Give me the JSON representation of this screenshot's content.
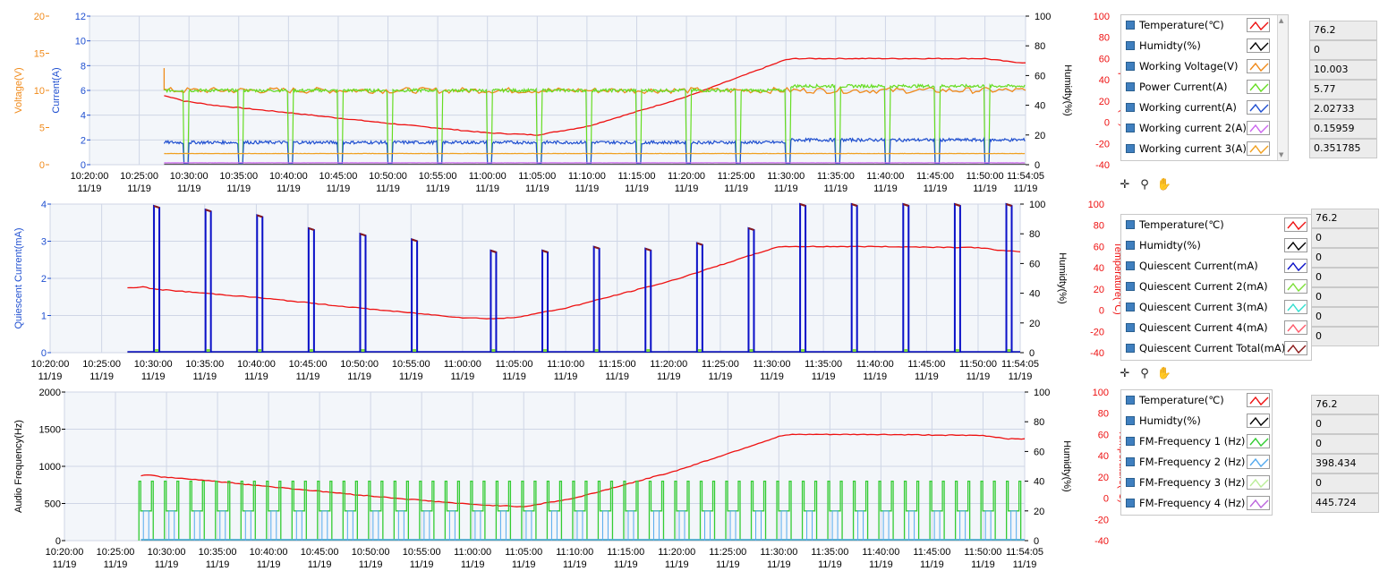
{
  "colors": {
    "temperature": "#ee1111",
    "humidity": "#000000",
    "voltage": "#f08a1a",
    "power_current": "#66dd22",
    "working_current": "#1f4fd0",
    "working_current_2": "#cc66ee",
    "working_current_3": "#f0a020",
    "quiescent_current": "#0a10c8",
    "quiescent_current_2": "#7ee03a",
    "quiescent_current_3": "#33e0d0",
    "quiescent_current_4": "#ff5a6a",
    "quiescent_total": "#8b1a1a",
    "fm1": "#33cc33",
    "fm2": "#55aaee",
    "fm3": "#bbee99",
    "fm4": "#bb66dd",
    "plot_bg": "#f3f6fa",
    "grid": "#cfd6e6"
  },
  "x_axis": {
    "ticks": [
      {
        "time": "10:20:00",
        "date": "11/19"
      },
      {
        "time": "10:25:00",
        "date": "11/19"
      },
      {
        "time": "10:30:00",
        "date": "11/19"
      },
      {
        "time": "10:35:00",
        "date": "11/19"
      },
      {
        "time": "10:40:00",
        "date": "11/19"
      },
      {
        "time": "10:45:00",
        "date": "11/19"
      },
      {
        "time": "10:50:00",
        "date": "11/19"
      },
      {
        "time": "10:55:00",
        "date": "11/19"
      },
      {
        "time": "11:00:00",
        "date": "11/19"
      },
      {
        "time": "11:05:00",
        "date": "11/19"
      },
      {
        "time": "11:10:00",
        "date": "11/19"
      },
      {
        "time": "11:15:00",
        "date": "11/19"
      },
      {
        "time": "11:20:00",
        "date": "11/19"
      },
      {
        "time": "11:25:00",
        "date": "11/19"
      },
      {
        "time": "11:30:00",
        "date": "11/19"
      },
      {
        "time": "11:35:00",
        "date": "11/19"
      },
      {
        "time": "11:40:00",
        "date": "11/19"
      },
      {
        "time": "11:45:00",
        "date": "11/19"
      },
      {
        "time": "11:50:00",
        "date": "11/19"
      },
      {
        "time": "11:54:05",
        "date": "11/19"
      }
    ]
  },
  "chart_data": [
    {
      "type": "line",
      "name": "power-chart",
      "x_range": [
        "10:20:00",
        "11:54:05"
      ],
      "y_axes": {
        "voltage": {
          "label": "Voltage(V)",
          "ticks": [
            "0",
            "5",
            "10",
            "15",
            "20"
          ],
          "range": [
            0,
            20
          ]
        },
        "current": {
          "label": "Current(A)",
          "ticks": [
            "0",
            "2",
            "4",
            "6",
            "8",
            "10",
            "12"
          ],
          "range": [
            0,
            12
          ]
        },
        "humidity": {
          "label": "Humidty(%)",
          "ticks": [
            "0",
            "20",
            "40",
            "60",
            "80",
            "100"
          ],
          "range": [
            0,
            100
          ]
        },
        "temperature": {
          "label": "Temperature(℃)",
          "ticks": [
            "-40",
            "-20",
            "0",
            "20",
            "40",
            "60",
            "80",
            "100"
          ],
          "range": [
            -40,
            100
          ]
        }
      },
      "grid": true,
      "series": [
        {
          "name": "Temperature(℃)",
          "key": "temperature",
          "axis": "temperature",
          "points": [
            [
              "10:27:30",
              25
            ],
            [
              "10:28:30",
              23
            ],
            [
              "10:29:30",
              20
            ],
            [
              "10:32:30",
              16
            ],
            [
              "10:40:00",
              9
            ],
            [
              "10:50:00",
              -1
            ],
            [
              "11:00:00",
              -10
            ],
            [
              "11:05:00",
              -12
            ],
            [
              "11:10:00",
              -4
            ],
            [
              "11:20:00",
              24
            ],
            [
              "11:30:00",
              59
            ],
            [
              "11:31:00",
              60
            ],
            [
              "11:40:00",
              60
            ],
            [
              "11:50:00",
              60
            ],
            [
              "11:52:30",
              57
            ],
            [
              "11:54:05",
              56
            ]
          ]
        },
        {
          "name": "Working Voltage(V)",
          "key": "voltage",
          "axis": "voltage",
          "points": [
            [
              "10:27:30",
              10.0
            ],
            [
              "11:54:05",
              10.0
            ]
          ],
          "start_spike": 13
        },
        {
          "name": "Power Current(A)",
          "key": "power_current",
          "axis": "current",
          "base": 6.0,
          "low": 0.1
        },
        {
          "name": "Working current(A)",
          "key": "working_current",
          "axis": "current",
          "base": 1.8,
          "low": 0.1
        },
        {
          "name": "Working current 2(A)",
          "key": "working_current_2",
          "axis": "current",
          "base": 0.15
        },
        {
          "name": "Working current 3(A)",
          "key": "working_current_3",
          "axis": "current",
          "base": 0.9
        }
      ],
      "pulse_times": [
        "10:29:30",
        "10:31:30",
        "10:35:00",
        "10:37:20",
        "10:40:00",
        "10:42:20",
        "10:45:00",
        "10:47:20",
        "10:50:00",
        "10:52:20",
        "10:55:00",
        "10:57:20",
        "11:00:00",
        "11:02:20",
        "11:05:00",
        "11:07:20",
        "11:10:00",
        "11:12:20",
        "11:15:00",
        "11:17:20",
        "11:20:00",
        "11:22:20",
        "11:25:00",
        "11:27:20",
        "11:30:00",
        "11:32:20",
        "11:35:00",
        "11:37:20",
        "11:40:00",
        "11:42:20",
        "11:45:00",
        "11:47:20",
        "11:50:00",
        "11:52:20"
      ]
    },
    {
      "type": "line",
      "name": "quiescent-chart",
      "x_range": [
        "10:20:00",
        "11:54:05"
      ],
      "y_axes": {
        "current": {
          "label": "Quiescent Current(mA)",
          "ticks": [
            "0",
            "1",
            "2",
            "3",
            "4"
          ],
          "range": [
            0,
            4
          ]
        },
        "humidity": {
          "label": "Humidty(%)",
          "ticks": [
            "0",
            "20",
            "40",
            "60",
            "80",
            "100"
          ],
          "range": [
            0,
            100
          ]
        },
        "temperature": {
          "label": "Temperature(℃)",
          "ticks": [
            "-40",
            "-20",
            "0",
            "20",
            "40",
            "60",
            "80",
            "100"
          ],
          "range": [
            -40,
            100
          ]
        }
      },
      "grid": true,
      "series": [
        {
          "name": "Temperature(℃)",
          "key": "temperature",
          "axis": "temperature",
          "points": [
            [
              "10:27:30",
              21
            ],
            [
              "10:29:00",
              22
            ],
            [
              "10:30:00",
              20
            ],
            [
              "10:32:30",
              18
            ],
            [
              "10:40:00",
              12
            ],
            [
              "10:50:00",
              2
            ],
            [
              "11:00:00",
              -7
            ],
            [
              "11:03:00",
              -8
            ],
            [
              "11:05:00",
              -7
            ],
            [
              "11:10:00",
              2
            ],
            [
              "11:20:00",
              27
            ],
            [
              "11:30:00",
              58
            ],
            [
              "11:31:00",
              60
            ],
            [
              "11:40:00",
              60
            ],
            [
              "11:50:00",
              59
            ],
            [
              "11:52:30",
              56
            ],
            [
              "11:54:05",
              55
            ]
          ]
        },
        {
          "name": "Quiescent Current(mA)",
          "key": "quiescent_current",
          "axis": "current",
          "spikes": [
            [
              "10:30:20",
              3.95
            ],
            [
              "10:35:20",
              3.85
            ],
            [
              "10:40:20",
              3.7
            ],
            [
              "10:45:20",
              3.35
            ],
            [
              "10:50:20",
              3.2
            ],
            [
              "10:55:20",
              3.05
            ],
            [
              "11:03:00",
              2.75
            ],
            [
              "11:08:00",
              2.75
            ],
            [
              "11:13:00",
              2.85
            ],
            [
              "11:18:00",
              2.8
            ],
            [
              "11:23:00",
              2.95
            ],
            [
              "11:28:00",
              3.35
            ],
            [
              "11:33:00",
              4.0
            ],
            [
              "11:38:00",
              4.0
            ],
            [
              "11:43:00",
              4.0
            ],
            [
              "11:48:00",
              4.0
            ],
            [
              "11:53:00",
              4.0
            ]
          ]
        },
        {
          "name": "Quiescent Current Total(mA)",
          "key": "quiescent_total",
          "axis": "current"
        }
      ]
    },
    {
      "type": "line",
      "name": "audio-chart",
      "x_range": [
        "10:20:00",
        "11:54:05"
      ],
      "y_axes": {
        "frequency": {
          "label": "Audio Frequency(Hz)",
          "ticks": [
            "0",
            "500",
            "1000",
            "1500",
            "2000"
          ],
          "range": [
            0,
            2000
          ]
        },
        "humidity": {
          "label": "Humidty(%)",
          "ticks": [
            "0",
            "20",
            "40",
            "60",
            "80",
            "100"
          ],
          "range": [
            0,
            100
          ]
        },
        "temperature": {
          "label": "Temperature(℃)",
          "ticks": [
            "-40",
            "-20",
            "0",
            "20",
            "40",
            "60",
            "80",
            "100"
          ],
          "range": [
            -40,
            100
          ]
        }
      },
      "grid": true,
      "series": [
        {
          "name": "Temperature(℃)",
          "key": "temperature",
          "axis": "temperature",
          "points": [
            [
              "10:27:30",
              21
            ],
            [
              "10:28:30",
              22
            ],
            [
              "10:29:30",
              20
            ],
            [
              "10:32:30",
              18
            ],
            [
              "10:40:00",
              11
            ],
            [
              "10:50:00",
              2
            ],
            [
              "11:00:00",
              -6
            ],
            [
              "11:05:00",
              -8
            ],
            [
              "11:10:00",
              0
            ],
            [
              "11:20:00",
              26
            ],
            [
              "11:30:00",
              58
            ],
            [
              "11:31:00",
              60
            ],
            [
              "11:40:00",
              60
            ],
            [
              "11:50:00",
              59
            ],
            [
              "11:52:30",
              56
            ],
            [
              "11:54:05",
              56
            ]
          ]
        },
        {
          "name": "FM-Frequency 1 (Hz)",
          "key": "fm1",
          "axis": "frequency",
          "high": 800,
          "mid": 400
        },
        {
          "name": "FM-Frequency 2 (Hz)",
          "key": "fm2",
          "axis": "frequency",
          "high": 398.434
        }
      ],
      "burst_times": [
        "10:28:00",
        "10:30:30",
        "10:33:00",
        "10:35:30",
        "10:38:00",
        "10:40:30",
        "10:43:00",
        "10:45:30",
        "10:48:00",
        "10:50:30",
        "10:53:00",
        "10:55:30",
        "10:58:00",
        "11:00:30",
        "11:03:00",
        "11:05:30",
        "11:08:00",
        "11:10:30",
        "11:13:00",
        "11:15:30",
        "11:18:00",
        "11:20:30",
        "11:23:00",
        "11:25:30",
        "11:28:00",
        "11:30:30",
        "11:33:00",
        "11:35:30",
        "11:38:00",
        "11:40:30",
        "11:43:00",
        "11:45:30",
        "11:48:00",
        "11:50:30",
        "11:53:00"
      ]
    }
  ],
  "legend_top": {
    "items": [
      {
        "label": "Temperature(℃)",
        "key": "temperature",
        "value": "76.2"
      },
      {
        "label": "Humidty(%)",
        "key": "humidity",
        "value": "0"
      },
      {
        "label": "Working Voltage(V)",
        "key": "voltage",
        "value": "10.003"
      },
      {
        "label": "Power Current(A)",
        "key": "power_current",
        "value": "5.77"
      },
      {
        "label": "Working current(A)",
        "key": "working_current",
        "value": "2.02733"
      },
      {
        "label": "Working current 2(A)",
        "key": "working_current_2",
        "value": "0.15959"
      },
      {
        "label": "Working current 3(A)",
        "key": "working_current_3",
        "value": "0.351785"
      }
    ]
  },
  "legend_middle": {
    "items": [
      {
        "label": "Temperature(℃)",
        "key": "temperature",
        "value": "76.2"
      },
      {
        "label": "Humidty(%)",
        "key": "humidity",
        "value": "0"
      },
      {
        "label": "Quiescent Current(mA)",
        "key": "quiescent_current",
        "value": "0"
      },
      {
        "label": "Quiescent Current 2(mA)",
        "key": "quiescent_current_2",
        "value": "0"
      },
      {
        "label": "Quiescent Current 3(mA)",
        "key": "quiescent_current_3",
        "value": "0"
      },
      {
        "label": "Quiescent Current 4(mA)",
        "key": "quiescent_current_4",
        "value": "0"
      },
      {
        "label": "Quiescent Current Total(mA)",
        "key": "quiescent_total",
        "value": "0"
      }
    ]
  },
  "legend_bottom": {
    "items": [
      {
        "label": "Temperature(℃)",
        "key": "temperature",
        "value": "76.2"
      },
      {
        "label": "Humidty(%)",
        "key": "humidity",
        "value": "0"
      },
      {
        "label": "FM-Frequency 1 (Hz)",
        "key": "fm1",
        "value": "0"
      },
      {
        "label": "FM-Frequency 2 (Hz)",
        "key": "fm2",
        "value": "398.434"
      },
      {
        "label": "FM-Frequency 3 (Hz)",
        "key": "fm3",
        "value": "0"
      },
      {
        "label": "FM-Frequency 4 (Hz)",
        "key": "fm4",
        "value": "445.724"
      }
    ]
  },
  "palette_tools": [
    {
      "name": "cursor-move-tool-icon",
      "glyph": "✛"
    },
    {
      "name": "zoom-tool-icon",
      "glyph": "⚲"
    },
    {
      "name": "pan-hand-tool-icon",
      "glyph": "✋"
    }
  ]
}
